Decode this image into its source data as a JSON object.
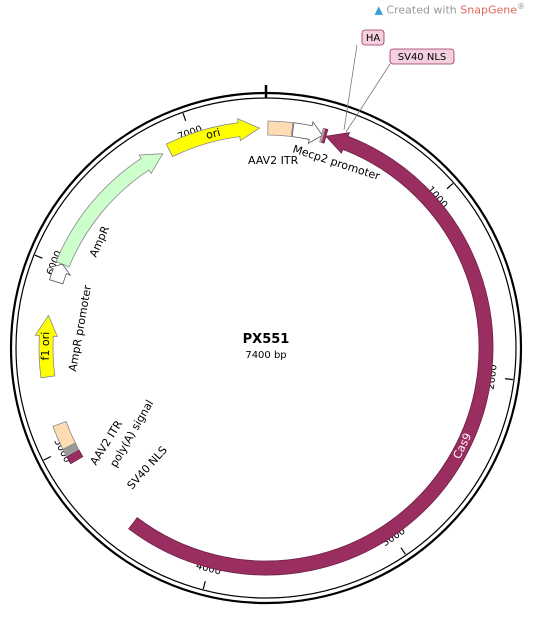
{
  "watermark": {
    "prefix": "Created with ",
    "brand": "SnapGene",
    "mark": "®"
  },
  "plasmid": {
    "name": "PX551",
    "length_label": "7400 bp",
    "length": 7400
  },
  "ticks": [
    1000,
    2000,
    3000,
    4000,
    5000,
    6000,
    7000
  ],
  "features": [
    {
      "id": "cas9",
      "label": "Cas9",
      "start": 325,
      "end": 4465,
      "direction": -1,
      "type": "arrow",
      "color": "#9a2e61",
      "label_inside": true,
      "label_color": "#ffffff"
    },
    {
      "id": "ori",
      "label": "ori",
      "start": 6865,
      "end": 7365,
      "direction": 1,
      "type": "arrow",
      "color": "#ffff00",
      "label_inside": true,
      "label_color": "#000000"
    },
    {
      "id": "ampr",
      "label": "AmpR",
      "start": 6010,
      "end": 6825,
      "direction": 1,
      "type": "arrow",
      "color": "#ccffcc",
      "label_inside": false,
      "label_color": "#000000"
    },
    {
      "id": "ampr-promoter",
      "label": "AmpR promoter",
      "start": 5910,
      "end": 6010,
      "direction": 1,
      "type": "arrow",
      "color": "#ffffff",
      "label_inside": false,
      "label_color": "#000000"
    },
    {
      "id": "f1-ori",
      "label": "f1 ori",
      "start": 5395,
      "end": 5725,
      "direction": 1,
      "type": "arrow",
      "color": "#ffff00",
      "label_inside": true,
      "label_color": "#000000"
    },
    {
      "id": "mecp2-promoter",
      "label": "Mecp2 promoter",
      "start": 145,
      "end": 305,
      "direction": 1,
      "type": "arrow",
      "color": "#ffffff",
      "label_inside": false,
      "label_color": "#000000"
    },
    {
      "id": "aav2-itr-top",
      "label": "AAV2 ITR",
      "start": 10,
      "end": 140,
      "direction": 0,
      "type": "box",
      "color": "#ffdcb4",
      "label_inside": false,
      "label_color": "#000000"
    },
    {
      "id": "aav2-itr-bottom",
      "label": "AAV2 ITR",
      "start": 5005,
      "end": 5135,
      "direction": 0,
      "type": "box",
      "color": "#ffdcb4",
      "label_inside": false,
      "label_color": "#000000"
    },
    {
      "id": "polya-signal",
      "label": "poly(A) signal",
      "start": 4960,
      "end": 5005,
      "direction": 0,
      "type": "box",
      "color": "#999999",
      "label_inside": false,
      "label_color": "#000000"
    },
    {
      "id": "sv40-nls-bottom",
      "label": "SV40 NLS",
      "start": 4920,
      "end": 4960,
      "direction": 0,
      "type": "box",
      "color": "#9a2e61",
      "label_inside": false,
      "label_color": "#000000"
    },
    {
      "id": "sv40-nls-top",
      "label": "SV40 NLS",
      "start": 305,
      "end": 325,
      "direction": 0,
      "type": "box",
      "color": "#9a2e61",
      "label_inside": false,
      "label_color": "#000000"
    },
    {
      "id": "ha-tag",
      "label": "HA",
      "start": 300,
      "end": 310,
      "direction": 0,
      "type": "box",
      "color": "#d8a0b8",
      "label_inside": false,
      "label_color": "#000000"
    }
  ],
  "colors": {
    "backbone": "#000000",
    "callout_bg": "#f4d0de",
    "callout_border": "#9a2e61"
  }
}
